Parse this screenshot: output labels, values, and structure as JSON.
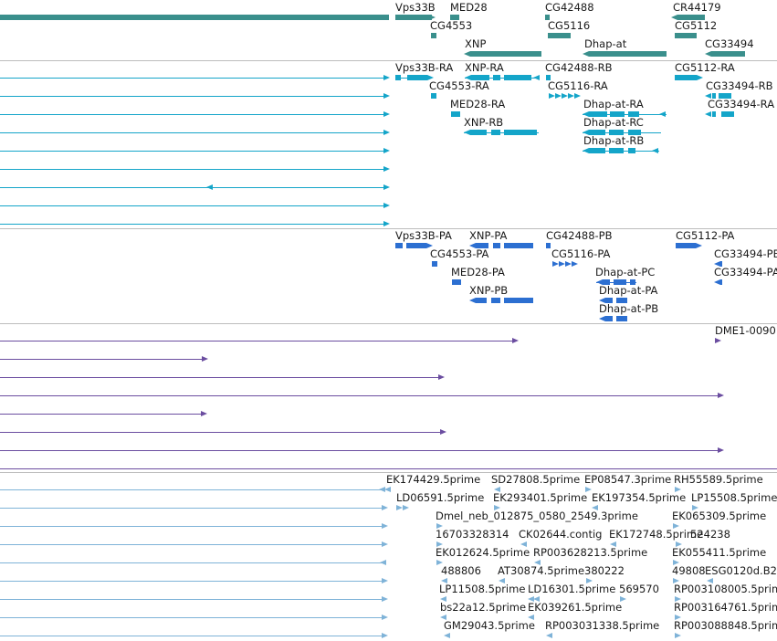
{
  "colors": {
    "gene": "#3a8f8c",
    "mrna": "#14a5c9",
    "cds": "#2c6fd1",
    "purple": "#6b4da0",
    "est": "#7fb3d8",
    "divider": "#bdbdbd"
  },
  "tracks": {
    "genes": {
      "labels": [
        "Vps33B",
        "MED28",
        "CG42488",
        "CR44179",
        "CG4553",
        "CG5116",
        "CG5112",
        "XNP",
        "Dhap-at",
        "CG33494"
      ]
    },
    "transcripts": {
      "labels": [
        "Vps33B-RA",
        "XNP-RA",
        "CG42488-RB",
        "CG5112-RA",
        "CG4553-RA",
        "CG5116-RA",
        "CG33494-RB",
        "MED28-RA",
        "Dhap-at-RA",
        "CG33494-RA",
        "XNP-RB",
        "Dhap-at-RC",
        "Dhap-at-RB"
      ]
    },
    "proteins": {
      "labels": [
        "Vps33B-PA",
        "XNP-PA",
        "CG42488-PB",
        "CG5112-PA",
        "CG4553-PA",
        "CG5116-PA",
        "CG33494-PB",
        "MED28-PA",
        "Dhap-at-PC",
        "CG33494-PA",
        "XNP-PB",
        "Dhap-at-PA",
        "Dhap-at-PB"
      ]
    },
    "alignments": {
      "labels": [
        "DME1-0090"
      ]
    },
    "ests": {
      "labels": [
        "EK174429.5prime",
        "SD27808.5prime",
        "EP08547.3prime",
        "RH55589.5prime",
        "LD06591.5prime",
        "EK293401.5prime",
        "EK197354.5prime",
        "LP15508.5prime",
        "Dmel_neb_012875_0580_2549.3prime",
        "EK065309.5prime",
        "16703328314",
        "CK02644.contig",
        "EK172748.5prime",
        "524238",
        "EK012624.5prime",
        "RP003628213.5prime",
        "EK055411.5prime",
        "488806",
        "AT30874.5prime",
        "380222",
        "49808",
        "ESG0120d.B2",
        "LP11508.5prime",
        "LD16301.5prime",
        "569570",
        "RP003108005.5prime",
        "bs22a12.5prime",
        "EK039261.5prime",
        "RP003164761.5prime",
        "GM29043.5prime",
        "RP003031338.5prime",
        "RP003088848.5prime"
      ]
    }
  }
}
